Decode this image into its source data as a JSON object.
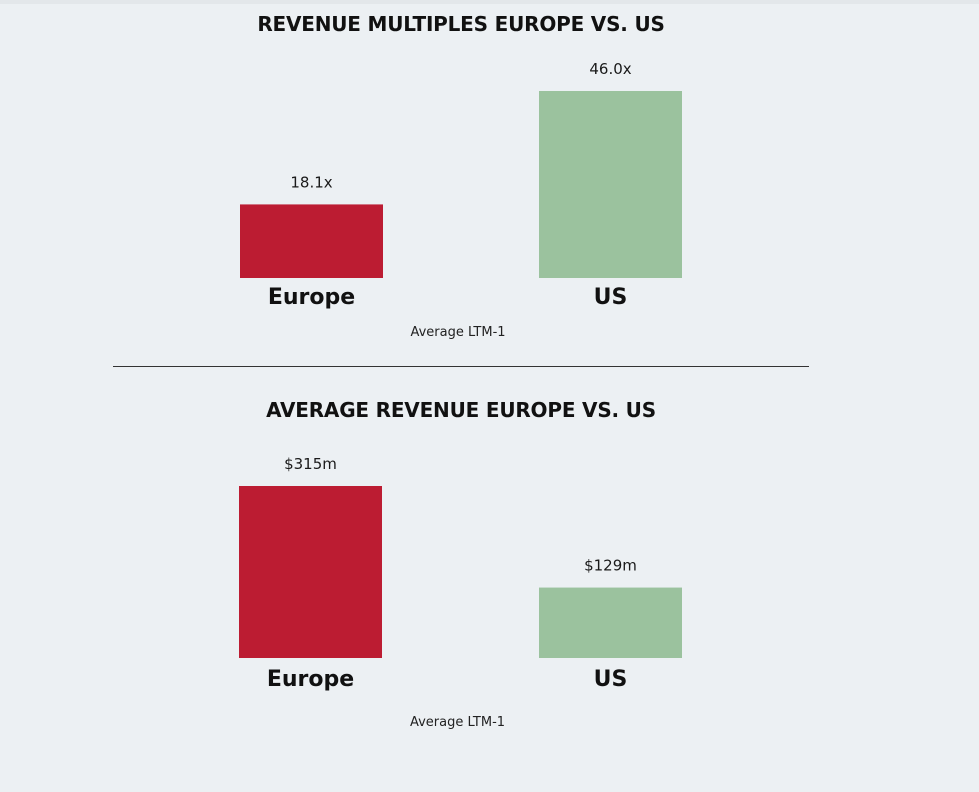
{
  "chart_data": [
    {
      "type": "bar",
      "title": "REVENUE MULTIPLES EUROPE VS. US",
      "categories": [
        "Europe",
        "US"
      ],
      "values": [
        18.1,
        46.0
      ],
      "value_labels": [
        "18.1x",
        "46.0x"
      ],
      "xlabel": "Average LTM-1",
      "ylabel": "",
      "ylim": [
        0,
        46.0
      ],
      "grid": false,
      "legend": "none",
      "colors": [
        "#bc1c32",
        "#9bc29e"
      ]
    },
    {
      "type": "bar",
      "title": "AVERAGE REVENUE EUROPE VS. US",
      "categories": [
        "Europe",
        "US"
      ],
      "values": [
        315,
        129
      ],
      "value_labels": [
        "$315m",
        "$129m"
      ],
      "xlabel": "Average LTM-1",
      "ylabel": "",
      "ylim": [
        0,
        315
      ],
      "grid": false,
      "legend": "none",
      "colors": [
        "#bc1c32",
        "#9bc29e"
      ]
    }
  ]
}
